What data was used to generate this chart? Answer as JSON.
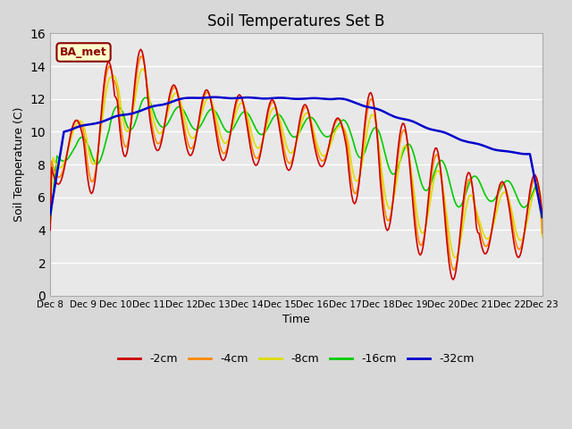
{
  "title": "Soil Temperatures Set B",
  "xlabel": "Time",
  "ylabel": "Soil Temperature (C)",
  "ylim": [
    0,
    16
  ],
  "annotation": "BA_met",
  "series": {
    "-2cm": {
      "color": "#cc0000",
      "lw": 1.2
    },
    "-4cm": {
      "color": "#ff8800",
      "lw": 1.2
    },
    "-8cm": {
      "color": "#dddd00",
      "lw": 1.2
    },
    "-16cm": {
      "color": "#00cc00",
      "lw": 1.2
    },
    "-32cm": {
      "color": "#0000cc",
      "lw": 1.8
    }
  },
  "xtick_labels": [
    "Dec 8",
    "Dec 9",
    "Dec 10",
    "Dec 11",
    "Dec 12",
    "Dec 13",
    "Dec 14",
    "Dec 15",
    "Dec 16",
    "Dec 17",
    "Dec 18",
    "Dec 19",
    "Dec 20",
    "Dec 21",
    "Dec 22",
    "Dec 23"
  ],
  "num_days": 15,
  "pts_per_day": 24
}
